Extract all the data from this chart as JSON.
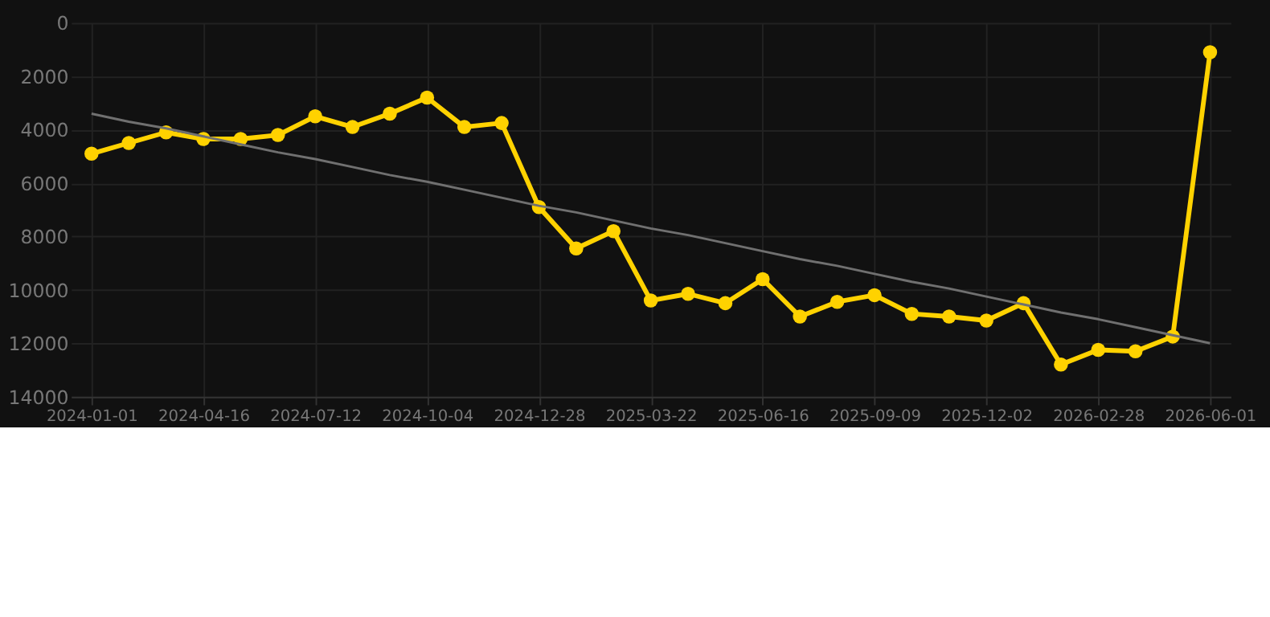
{
  "chart_data": {
    "type": "line",
    "categories": [
      "2024-01-01",
      null,
      null,
      "2024-04-16",
      null,
      null,
      "2024-07-12",
      null,
      null,
      "2024-10-04",
      null,
      null,
      "2024-12-28",
      null,
      null,
      "2025-03-22",
      null,
      null,
      "2025-06-16",
      null,
      null,
      "2025-09-09",
      null,
      null,
      "2025-12-02",
      null,
      null,
      "2026-02-28",
      null,
      null,
      "2026-06-01"
    ],
    "series": [
      {
        "color": "#ffd200",
        "marker": "circle",
        "values": [
          4900,
          4500,
          4100,
          4350,
          4350,
          4200,
          3500,
          3900,
          3400,
          2800,
          3900,
          3750,
          6900,
          8450,
          7800,
          10400,
          10150,
          10500,
          9600,
          11000,
          10450,
          10200,
          10900,
          11000,
          11150,
          10500,
          12800,
          12250,
          12300,
          11750,
          1100
        ]
      },
      {
        "type": "line",
        "color": "#707070",
        "marker": "none",
        "values": [
          3400,
          3700,
          3950,
          4250,
          4550,
          4850,
          5100,
          5400,
          5700,
          5950,
          6250,
          6550,
          6850,
          7100,
          7400,
          7700,
          7950,
          8250,
          8550,
          8850,
          9100,
          9400,
          9700,
          9950,
          10250,
          10550,
          10850,
          11100,
          11400,
          11700,
          12000
        ]
      }
    ],
    "ylim": [
      14000,
      0
    ],
    "yticks": [
      0,
      2000,
      4000,
      6000,
      8000,
      10000,
      12000,
      14000
    ],
    "grid": true,
    "line_style": "solid"
  }
}
